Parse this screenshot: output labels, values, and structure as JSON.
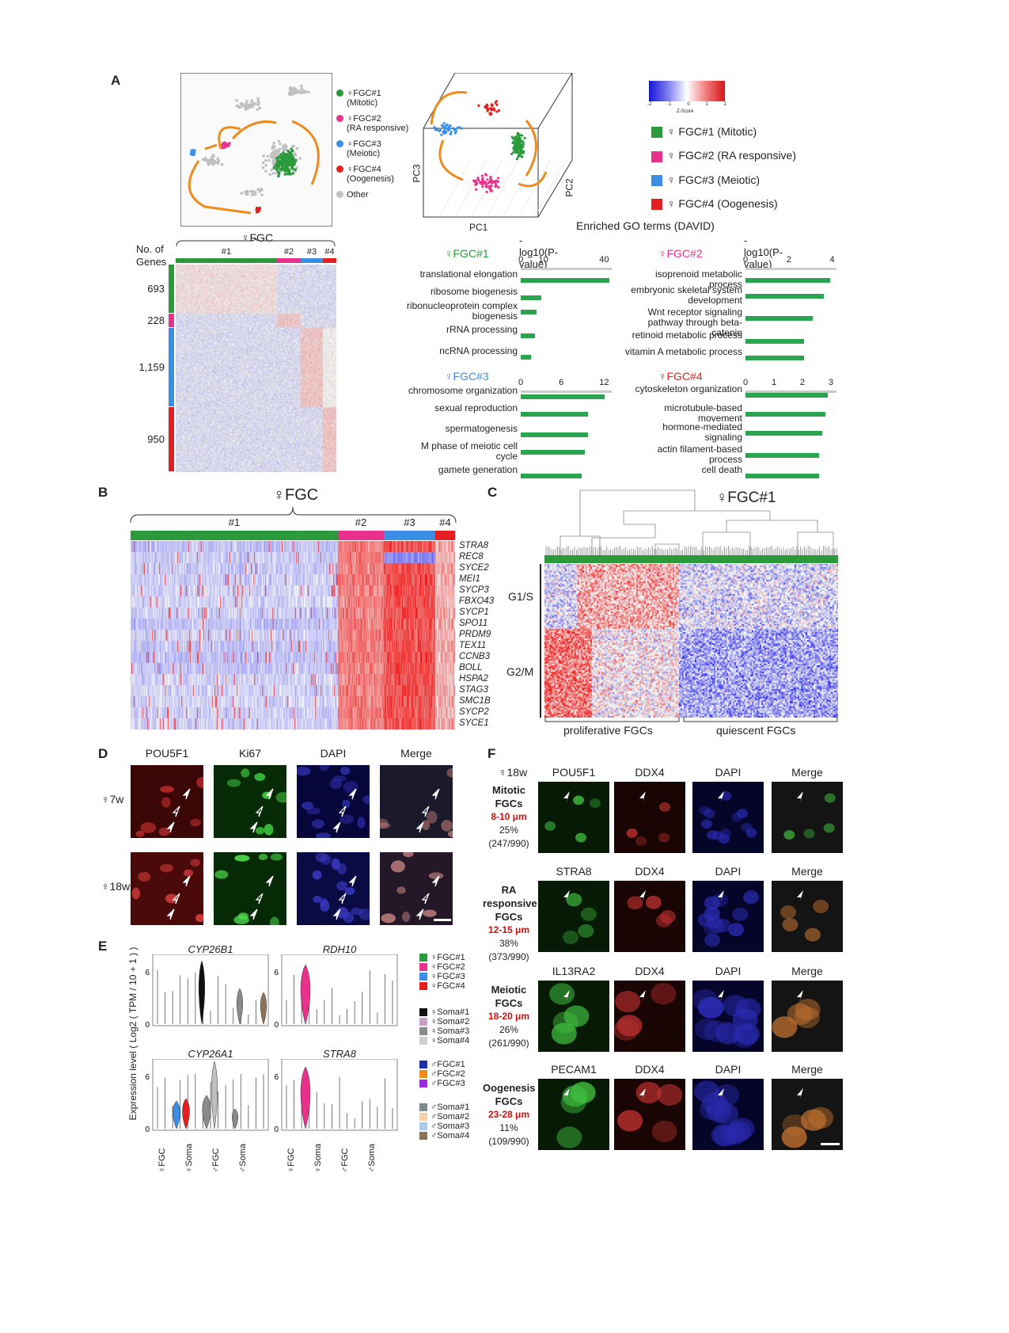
{
  "panels": {
    "A": "A",
    "B": "B",
    "C": "C",
    "D": "D",
    "E": "E",
    "F": "F"
  },
  "colors": {
    "fgc1": "#2a9a3a",
    "fgc2": "#e8308c",
    "fgc3": "#3a8ee6",
    "fgc4": "#e3201f",
    "other": "#c0c0c0",
    "orange": "#f08a1c",
    "go_bar": "#2aa44f"
  },
  "tsne_legend": [
    {
      "label": "♀FGC#1",
      "sub": "(Mitotic)",
      "color": "#2a9a3a"
    },
    {
      "label": "♀FGC#2",
      "sub": "(RA responsive)",
      "color": "#e8308c"
    },
    {
      "label": "♀FGC#3",
      "sub": "(Meiotic)",
      "color": "#3a8ee6"
    },
    {
      "label": "♀FGC#4",
      "sub": "(Oogenesis)",
      "color": "#e3201f"
    },
    {
      "label": "Other",
      "sub": "",
      "color": "#c0c0c0"
    }
  ],
  "pca": {
    "x": "PC1",
    "y": "PC3",
    "z": "PC2"
  },
  "colorbar": {
    "ticks": [
      "-2",
      "-1",
      "0",
      "1",
      "2"
    ],
    "label": "Z-Score"
  },
  "pca_legend": [
    {
      "label": "♀ FGC#1 (Mitotic)",
      "color": "#2a9a3a"
    },
    {
      "label": "♀ FGC#2 (RA responsive)",
      "color": "#e8308c"
    },
    {
      "label": "♀ FGC#3 (Meiotic)",
      "color": "#3a8ee6"
    },
    {
      "label": "♀ FGC#4 (Oogenesis)",
      "color": "#e3201f"
    }
  ],
  "heatmapA": {
    "title": "♀FGC",
    "ylabel1": "No. of",
    "ylabel2": "Genes",
    "clusters": [
      "#1",
      "#2",
      "#3",
      "#4"
    ],
    "gene_counts": [
      "693",
      "228",
      "1,159",
      "950"
    ]
  },
  "go": {
    "title": "Enriched GO terms (DAVID)",
    "axis_label": "-log10(P-value)",
    "panels": [
      {
        "title": "♀FGC#1",
        "color": "#2a9a3a",
        "ticks": [
          "0",
          "10",
          "40"
        ],
        "terms": [
          "translational elongation",
          "ribosome biogenesis",
          "ribonucleoprotein complex biogenesis",
          "rRNA processing",
          "ncRNA processing"
        ],
        "values": [
          44,
          10,
          8,
          7,
          5
        ],
        "max": 45
      },
      {
        "title": "♀FGC#2",
        "color": "#e8308c",
        "ticks": [
          "0",
          "2",
          "4"
        ],
        "terms": [
          "isoprenoid metabolic process",
          "embryonic skeletal system development",
          "Wnt receptor signaling pathway through beta-catenin",
          "retinoid metabolic process",
          "vitamin A metabolic process"
        ],
        "values": [
          3.9,
          3.6,
          3.1,
          2.7,
          2.7
        ],
        "max": 4.2
      },
      {
        "title": "♀FGC#3",
        "color": "#3a8ee6",
        "ticks": [
          "0",
          "6",
          "12"
        ],
        "terms": [
          "chromosome organization",
          "sexual reproduction",
          "spermatogenesis",
          "M phase of meiotic cell cycle",
          "gamete generation"
        ],
        "values": [
          12.5,
          10,
          10,
          9.5,
          9
        ],
        "max": 13.5
      },
      {
        "title": "♀FGC#4",
        "color": "#e3201f",
        "ticks": [
          "0",
          "1",
          "2",
          "3"
        ],
        "terms": [
          "cytoskeleton organization",
          "microtubule-based movement",
          "hormone-mediated signaling",
          "actin filament-based process",
          "cell death"
        ],
        "values": [
          2.9,
          2.8,
          2.7,
          2.6,
          2.6
        ],
        "max": 3.2
      }
    ]
  },
  "heatmapB": {
    "title": "♀FGC",
    "clusters": [
      "#1",
      "#2",
      "#3",
      "#4"
    ],
    "genes": [
      "STRA8",
      "REC8",
      "SYCE2",
      "MEI1",
      "SYCP3",
      "FBXO43",
      "SYCP1",
      "SPO11",
      "PRDM9",
      "TEX11",
      "CCNB3",
      "BOLL",
      "HSPA2",
      "STAG3",
      "SMC1B",
      "SYCP2",
      "SYCE1"
    ]
  },
  "heatmapC": {
    "title": "♀FGC#1",
    "rows": [
      "G1/S",
      "G2/M"
    ],
    "cols": [
      "proliferative FGCs",
      "quiescent FGCs"
    ]
  },
  "panelD": {
    "columns": [
      "POU5F1",
      "Ki67",
      "DAPI",
      "Merge"
    ],
    "rows": [
      "♀7w",
      "♀18w"
    ]
  },
  "panelE": {
    "ylabel": "Expression level ( Log2 ( TPM / 10 + 1 ) )",
    "genes": [
      "CYP26B1",
      "RDH10",
      "CYP26A1",
      "STRA8"
    ],
    "yticks": [
      "0",
      "6"
    ],
    "xcats": [
      "♀FGC",
      "♀Soma",
      "♂FGC",
      "♂Soma"
    ],
    "legend_female": [
      {
        "label": "♀FGC#1",
        "color": "#2a9a3a"
      },
      {
        "label": "♀FGC#2",
        "color": "#e8308c"
      },
      {
        "label": "♀FGC#3",
        "color": "#3a8ee6"
      },
      {
        "label": "♀FGC#4",
        "color": "#e3201f"
      }
    ],
    "legend_fsoma": [
      {
        "label": "♀Soma#1",
        "color": "#111111"
      },
      {
        "label": "♀Soma#2",
        "color": "#c7a0c8"
      },
      {
        "label": "♀Soma#3",
        "color": "#8a8a8a"
      },
      {
        "label": "♀Soma#4",
        "color": "#d0d0d0"
      }
    ],
    "legend_male": [
      {
        "label": "♂FGC#1",
        "color": "#1f2fa8"
      },
      {
        "label": "♂FGC#2",
        "color": "#f08a1c"
      },
      {
        "label": "♂FGC#3",
        "color": "#9a2ae0"
      }
    ],
    "legend_msoma": [
      {
        "label": "♂Soma#1",
        "color": "#7f8c8d"
      },
      {
        "label": "♂Soma#2",
        "color": "#f5cfa8"
      },
      {
        "label": "♂Soma#3",
        "color": "#a8cce8"
      },
      {
        "label": "♂Soma#4",
        "color": "#8b7355"
      }
    ]
  },
  "panelF": {
    "header": "♀18w",
    "rows": [
      {
        "stage": "Mitotic",
        "stage2": "FGCs",
        "size": "8-10 μm",
        "pct": "25%",
        "count": "(247/990)",
        "markers": [
          "POU5F1",
          "DDX4",
          "DAPI",
          "Merge"
        ]
      },
      {
        "stage": "RA responsive",
        "stage2": "FGCs",
        "size": "12-15 μm",
        "pct": "38%",
        "count": "(373/990)",
        "markers": [
          "STRA8",
          "DDX4",
          "DAPI",
          "Merge"
        ]
      },
      {
        "stage": "Meiotic",
        "stage2": "FGCs",
        "size": "18-20 μm",
        "pct": "26%",
        "count": "(261/990)",
        "markers": [
          "IL13RA2",
          "DDX4",
          "DAPI",
          "Merge"
        ]
      },
      {
        "stage": "Oogenesis",
        "stage2": "FGCs",
        "size": "23-28 μm",
        "pct": "11%",
        "count": "(109/990)",
        "markers": [
          "PECAM1",
          "DDX4",
          "DAPI",
          "Merge"
        ]
      }
    ]
  }
}
